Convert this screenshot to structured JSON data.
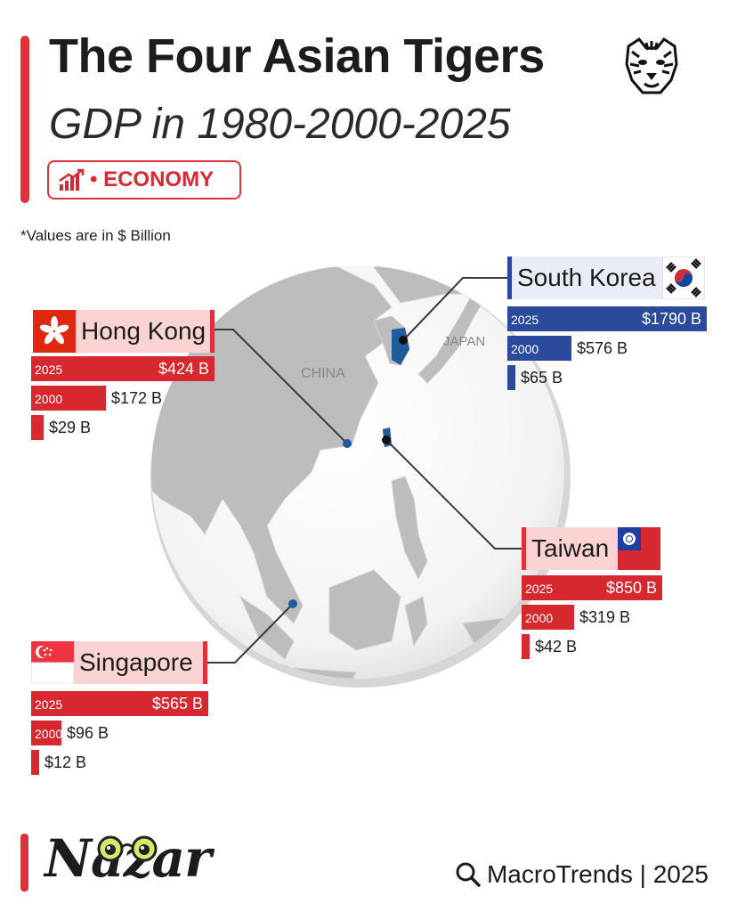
{
  "header": {
    "title": "The Four Asian Tigers",
    "subtitle": "GDP in 1980-2000-2025",
    "tag": "• ECONOMY",
    "note": "*Values are in $ Billion"
  },
  "map": {
    "label_china": "CHINA",
    "label_japan": "JAPAN"
  },
  "colors": {
    "accent": "#e0313a",
    "red_bar": "#d7282f",
    "blue_bar": "#2a4a9c",
    "label_bg": "#fbd3d2",
    "map_land": "#bdbdbd"
  },
  "chart_data": {
    "type": "bar",
    "unit": "$ Billion",
    "years": [
      "1980",
      "2000",
      "2025"
    ],
    "series": [
      {
        "name": "South Korea",
        "values": [
          65,
          576,
          1790
        ],
        "labels": [
          "$65 B",
          "$576 B",
          "$1790 B"
        ]
      },
      {
        "name": "Hong Kong",
        "values": [
          29,
          172,
          424
        ],
        "labels": [
          "$29 B",
          "$172 B",
          "$424 B"
        ]
      },
      {
        "name": "Taiwan",
        "values": [
          42,
          319,
          850
        ],
        "labels": [
          "$42 B",
          "$319 B",
          "$850 B"
        ]
      },
      {
        "name": "Singapore",
        "values": [
          12,
          96,
          565
        ],
        "labels": [
          "$12 B",
          "$96 B",
          "$565 B"
        ]
      }
    ],
    "bar_year_labels": {
      "2025": "2025",
      "2000": "2000"
    }
  },
  "footer": {
    "brand": "Nazar",
    "source": "MacroTrends | 2025"
  }
}
